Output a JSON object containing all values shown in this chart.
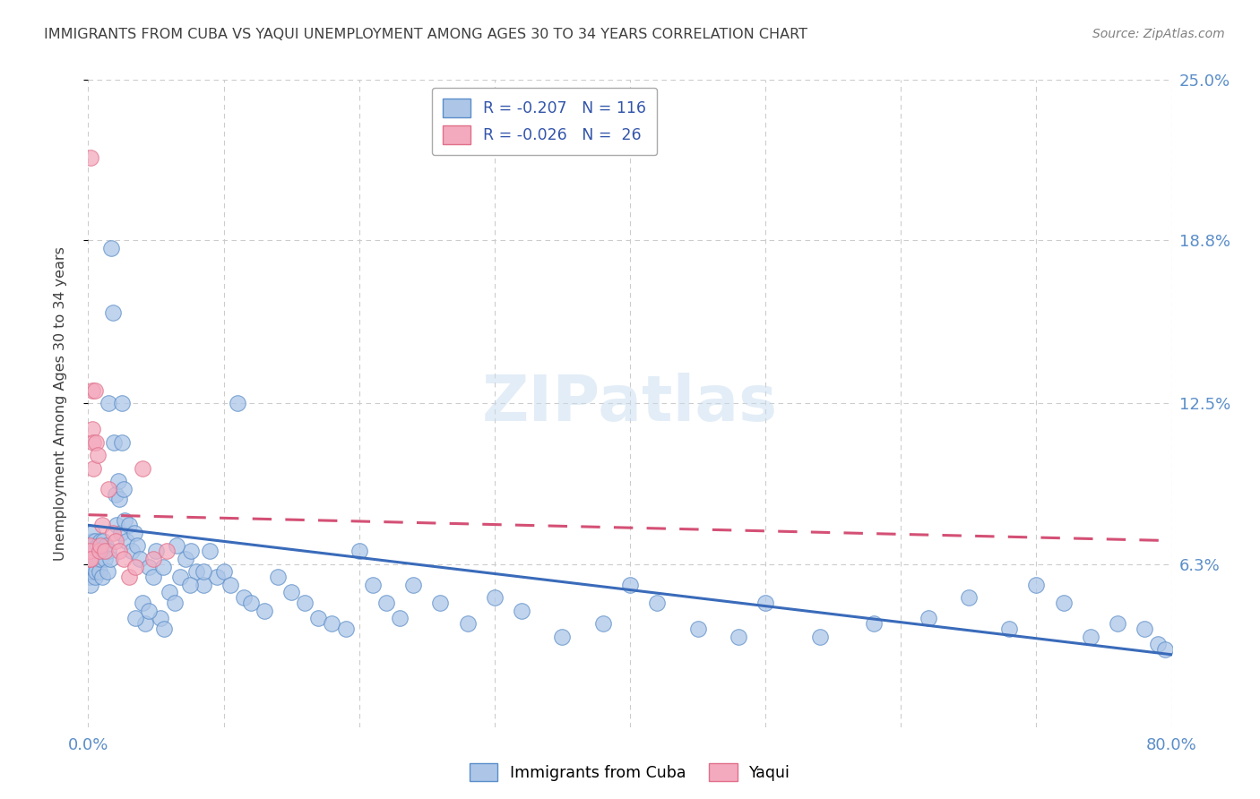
{
  "title": "IMMIGRANTS FROM CUBA VS YAQUI UNEMPLOYMENT AMONG AGES 30 TO 34 YEARS CORRELATION CHART",
  "source": "Source: ZipAtlas.com",
  "ylabel": "Unemployment Among Ages 30 to 34 years",
  "xlim": [
    0.0,
    0.8
  ],
  "ylim": [
    0.0,
    0.25
  ],
  "yticks": [
    0.063,
    0.125,
    0.188,
    0.25
  ],
  "ytick_labels": [
    "6.3%",
    "12.5%",
    "18.8%",
    "25.0%"
  ],
  "xtick_positions": [
    0.0,
    0.1,
    0.2,
    0.3,
    0.4,
    0.5,
    0.6,
    0.7,
    0.8
  ],
  "xtick_labels": [
    "0.0%",
    "",
    "",
    "",
    "",
    "",
    "",
    "",
    "80.0%"
  ],
  "cuba_R": -0.207,
  "cuba_N": 116,
  "yaqui_R": -0.026,
  "yaqui_N": 26,
  "cuba_face_color": "#adc6e8",
  "yaqui_face_color": "#f4aabe",
  "cuba_edge_color": "#5b8ec9",
  "yaqui_edge_color": "#e0708a",
  "cuba_line_color": "#3a6bba",
  "yaqui_line_color": "#d45075",
  "title_color": "#404040",
  "source_color": "#808080",
  "ylabel_color": "#404040",
  "tick_color": "#5b8ec9",
  "grid_color": "#cccccc",
  "watermark_color": "#c8ddf0",
  "watermark_alpha": 0.5,
  "legend_text_color": "#3355aa",
  "legend_border_color": "#aaaaaa",
  "bg_color": "#ffffff",
  "cuba_trend_start_y": 0.078,
  "cuba_trend_end_y": 0.028,
  "yaqui_trend_start_y": 0.082,
  "yaqui_trend_end_y": 0.072,
  "cuba_x": [
    0.001,
    0.001,
    0.001,
    0.001,
    0.001,
    0.002,
    0.002,
    0.002,
    0.002,
    0.003,
    0.003,
    0.003,
    0.003,
    0.004,
    0.004,
    0.004,
    0.005,
    0.005,
    0.005,
    0.006,
    0.006,
    0.007,
    0.007,
    0.008,
    0.008,
    0.009,
    0.009,
    0.01,
    0.01,
    0.011,
    0.012,
    0.013,
    0.014,
    0.015,
    0.016,
    0.017,
    0.018,
    0.019,
    0.02,
    0.021,
    0.022,
    0.023,
    0.024,
    0.025,
    0.026,
    0.027,
    0.028,
    0.03,
    0.032,
    0.034,
    0.036,
    0.038,
    0.04,
    0.042,
    0.045,
    0.048,
    0.05,
    0.053,
    0.056,
    0.06,
    0.064,
    0.068,
    0.072,
    0.076,
    0.08,
    0.085,
    0.09,
    0.095,
    0.1,
    0.105,
    0.11,
    0.115,
    0.12,
    0.13,
    0.14,
    0.15,
    0.16,
    0.17,
    0.18,
    0.19,
    0.2,
    0.21,
    0.22,
    0.23,
    0.24,
    0.26,
    0.28,
    0.3,
    0.32,
    0.35,
    0.38,
    0.4,
    0.42,
    0.45,
    0.48,
    0.5,
    0.54,
    0.58,
    0.62,
    0.65,
    0.68,
    0.7,
    0.72,
    0.74,
    0.76,
    0.78,
    0.79,
    0.795,
    0.015,
    0.025,
    0.035,
    0.045,
    0.055,
    0.065,
    0.075,
    0.085
  ],
  "cuba_y": [
    0.065,
    0.068,
    0.07,
    0.062,
    0.058,
    0.07,
    0.065,
    0.06,
    0.055,
    0.072,
    0.068,
    0.06,
    0.075,
    0.065,
    0.07,
    0.062,
    0.068,
    0.058,
    0.072,
    0.065,
    0.06,
    0.07,
    0.065,
    0.068,
    0.06,
    0.072,
    0.065,
    0.068,
    0.058,
    0.072,
    0.065,
    0.07,
    0.06,
    0.068,
    0.065,
    0.185,
    0.16,
    0.11,
    0.09,
    0.078,
    0.095,
    0.088,
    0.075,
    0.11,
    0.092,
    0.08,
    0.072,
    0.078,
    0.068,
    0.075,
    0.07,
    0.065,
    0.048,
    0.04,
    0.062,
    0.058,
    0.068,
    0.042,
    0.038,
    0.052,
    0.048,
    0.058,
    0.065,
    0.068,
    0.06,
    0.055,
    0.068,
    0.058,
    0.06,
    0.055,
    0.125,
    0.05,
    0.048,
    0.045,
    0.058,
    0.052,
    0.048,
    0.042,
    0.04,
    0.038,
    0.068,
    0.055,
    0.048,
    0.042,
    0.055,
    0.048,
    0.04,
    0.05,
    0.045,
    0.035,
    0.04,
    0.055,
    0.048,
    0.038,
    0.035,
    0.048,
    0.035,
    0.04,
    0.042,
    0.05,
    0.038,
    0.055,
    0.048,
    0.035,
    0.04,
    0.038,
    0.032,
    0.03,
    0.125,
    0.125,
    0.042,
    0.045,
    0.062,
    0.07,
    0.055,
    0.06
  ],
  "yaqui_x": [
    0.001,
    0.001,
    0.001,
    0.002,
    0.002,
    0.003,
    0.003,
    0.004,
    0.004,
    0.005,
    0.006,
    0.007,
    0.008,
    0.009,
    0.01,
    0.012,
    0.015,
    0.018,
    0.02,
    0.023,
    0.026,
    0.03,
    0.035,
    0.04,
    0.048,
    0.058
  ],
  "yaqui_y": [
    0.065,
    0.07,
    0.068,
    0.22,
    0.065,
    0.13,
    0.115,
    0.11,
    0.1,
    0.13,
    0.11,
    0.105,
    0.068,
    0.07,
    0.078,
    0.068,
    0.092,
    0.075,
    0.072,
    0.068,
    0.065,
    0.058,
    0.062,
    0.1,
    0.065,
    0.068
  ]
}
